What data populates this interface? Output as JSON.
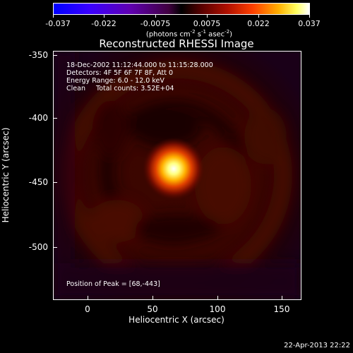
{
  "colorbar": {
    "ticks": [
      "-0.037",
      "-0.022",
      "-0.0075",
      "0.0075",
      "0.022",
      "0.037"
    ],
    "units_main": "(photons cm",
    "units_sup1": "-2",
    "units_mid": " s",
    "units_sup2": "-1",
    "units_mid2": " asec",
    "units_sup3": "-2",
    "units_end": ")"
  },
  "title": "Reconstructed RHESSI Image",
  "info": {
    "line1": "18-Dec-2002 11:12:44.000 to 11:15:28.000",
    "line2": "Detectors: 4F 5F 6F 7F 8F, Att 0",
    "line3": "Energy Range: 6.0 - 12.0 keV",
    "line4": "Clean     Total counts: 3.52E+04",
    "peak": "Position of Peak = [68,-443]"
  },
  "axes": {
    "xlabel": "Heliocentric X (arcsec)",
    "ylabel": "Heliocentric Y (arcsec)",
    "xticks": [
      "0",
      "50",
      "100",
      "150"
    ],
    "yticks": [
      "-350",
      "-400",
      "-450",
      "-500"
    ]
  },
  "timestamp": "22-Apr-2013 22:22",
  "chart_data": {
    "type": "heatmap",
    "title": "Reconstructed RHESSI Image",
    "xlabel": "Heliocentric X (arcsec)",
    "ylabel": "Heliocentric Y (arcsec)",
    "xlim": [
      -26,
      166
    ],
    "ylim": [
      -542,
      -348
    ],
    "colorbar_range": [
      -0.037,
      0.037
    ],
    "peak": [
      68,
      -443
    ]
  }
}
